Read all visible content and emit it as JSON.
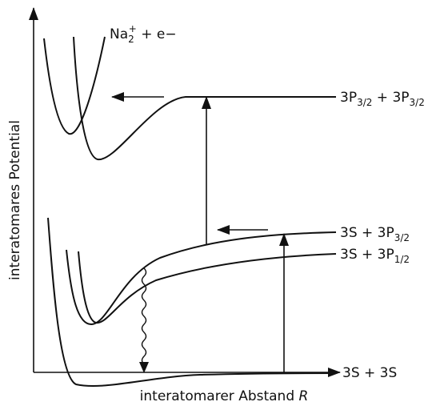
{
  "axes": {
    "y_label": "interatomares Potential",
    "x_label": "interatomarer Abstand ",
    "x_label_symbol": "R"
  },
  "states": {
    "ion": {
      "base": "Na",
      "sub": "2",
      "sup": "+",
      "rest": " + e−"
    },
    "doubly_excited": {
      "a": "3P",
      "a_sub": "3/2",
      "b": " + 3P",
      "b_sub": "3/2"
    },
    "excited_upper": {
      "a": "3S + 3P",
      "a_sub": "3/2"
    },
    "excited_lower": {
      "a": "3S + 3P",
      "a_sub": "1/2"
    },
    "ground": {
      "a": "3S + 3S"
    }
  }
}
